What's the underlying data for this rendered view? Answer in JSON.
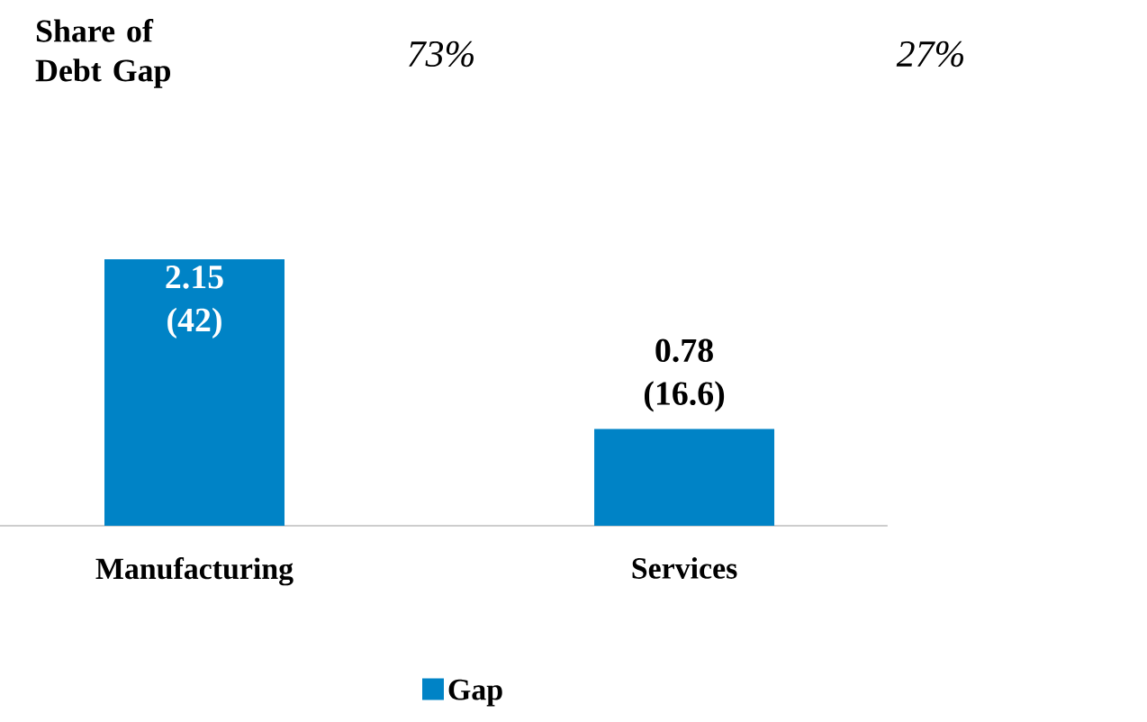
{
  "chart_data": {
    "type": "bar",
    "categories": [
      "Manufacturing",
      "Services"
    ],
    "series": [
      {
        "name": "Gap",
        "color": "#0083c6",
        "values": [
          2.15,
          0.78
        ],
        "value_labels": [
          "2.15 (42)",
          "0.78 (16.6)"
        ]
      }
    ],
    "annotations": [
      "Share of Debt Gap",
      "73%",
      "27%"
    ],
    "legend": "bottom"
  }
}
